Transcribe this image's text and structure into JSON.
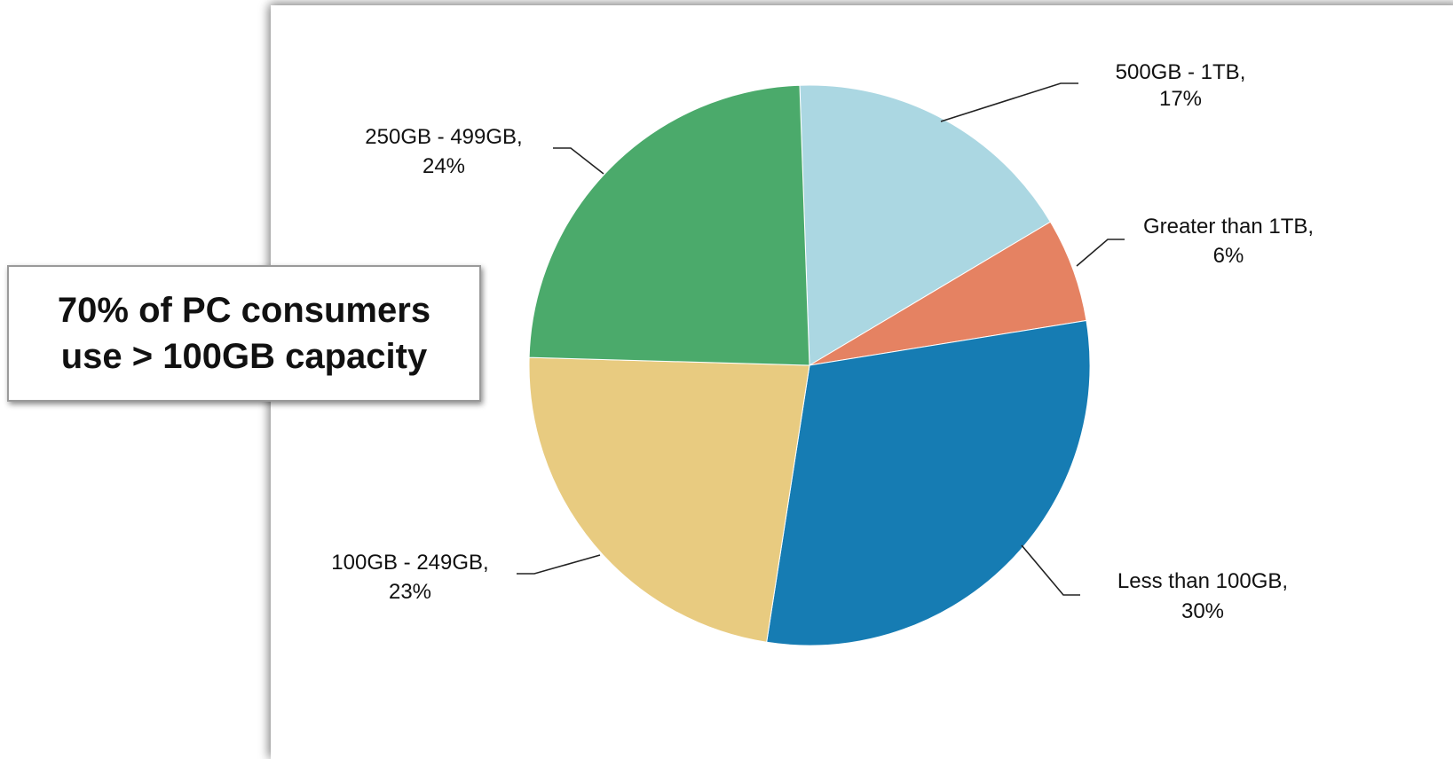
{
  "chart_data": {
    "type": "pie",
    "slices": [
      {
        "label": "500GB - 1TB",
        "percent": "17%",
        "value": 17,
        "color": "#ABD7E2"
      },
      {
        "label": "Greater than 1TB",
        "percent": "6%",
        "value": 6,
        "color": "#E58262"
      },
      {
        "label": "Less than 100GB",
        "percent": "30%",
        "value": 30,
        "color": "#167CB3"
      },
      {
        "label": "100GB - 249GB",
        "percent": "23%",
        "value": 23,
        "color": "#E8CB80"
      },
      {
        "label": "250GB - 499GB",
        "percent": "24%",
        "value": 24,
        "color": "#4BAA6B"
      }
    ],
    "start_angle_deg": -2,
    "direction": "clockwise",
    "label_placement": "outside with leader lines"
  },
  "callout": {
    "line1": "70% of PC consumers",
    "line2": "use > 100GB capacity"
  }
}
